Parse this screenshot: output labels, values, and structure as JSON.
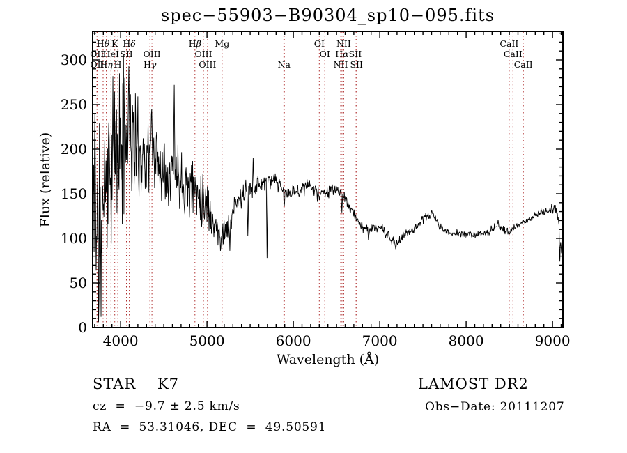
{
  "title": "spec−55903−B90304_sp10−095.fits",
  "footer": {
    "class_label": "STAR    K7",
    "cz": "cz  =  −9.7 ± 2.5 km/s",
    "ra_dec": "RA  =  53.31046, DEC  =  49.50591",
    "survey": "LAMOST DR2",
    "obs_date": "Obs−Date: 20111207"
  },
  "colors": {
    "background": "#ffffff",
    "trace": "#000000",
    "axis": "#000000",
    "text": "#000000",
    "line_marker": "#b03030"
  },
  "chart_data": {
    "type": "line",
    "title": "spec−55903−B90304_sp10−095.fits",
    "xlabel": "Wavelength (Å)",
    "ylabel": "Flux (relative)",
    "xlim": [
      3677,
      9120
    ],
    "ylim": [
      0,
      332
    ],
    "grid": false,
    "legend": "none",
    "x_major_ticks": [
      4000,
      5000,
      6000,
      7000,
      8000,
      9000
    ],
    "x_minor_step": 100,
    "y_major_ticks": [
      0,
      50,
      100,
      150,
      200,
      250,
      300
    ],
    "y_minor_step": 10,
    "series_name": "observed spectrum",
    "continuum": [
      [
        3680,
        135
      ],
      [
        3720,
        130
      ],
      [
        3760,
        145
      ],
      [
        3800,
        158
      ],
      [
        3850,
        172
      ],
      [
        3900,
        185
      ],
      [
        3950,
        198
      ],
      [
        4000,
        205
      ],
      [
        4050,
        212
      ],
      [
        4100,
        215
      ],
      [
        4150,
        205
      ],
      [
        4200,
        196
      ],
      [
        4250,
        192
      ],
      [
        4300,
        192
      ],
      [
        4350,
        195
      ],
      [
        4400,
        193
      ],
      [
        4450,
        185
      ],
      [
        4500,
        180
      ],
      [
        4550,
        178
      ],
      [
        4600,
        178
      ],
      [
        4650,
        175
      ],
      [
        4700,
        168
      ],
      [
        4750,
        162
      ],
      [
        4800,
        158
      ],
      [
        4850,
        155
      ],
      [
        4900,
        152
      ],
      [
        4950,
        148
      ],
      [
        5000,
        140
      ],
      [
        5050,
        125
      ],
      [
        5100,
        112
      ],
      [
        5150,
        105
      ],
      [
        5200,
        108
      ],
      [
        5250,
        112
      ],
      [
        5300,
        130
      ],
      [
        5350,
        140
      ],
      [
        5400,
        147
      ],
      [
        5450,
        152
      ],
      [
        5500,
        155
      ],
      [
        5550,
        158
      ],
      [
        5600,
        161
      ],
      [
        5650,
        163
      ],
      [
        5700,
        164
      ],
      [
        5750,
        165
      ],
      [
        5800,
        163
      ],
      [
        5850,
        157
      ],
      [
        5900,
        151
      ],
      [
        5950,
        150
      ],
      [
        6000,
        152
      ],
      [
        6050,
        154
      ],
      [
        6100,
        156
      ],
      [
        6150,
        158
      ],
      [
        6200,
        158
      ],
      [
        6250,
        156
      ],
      [
        6300,
        153
      ],
      [
        6350,
        151
      ],
      [
        6400,
        152
      ],
      [
        6450,
        154
      ],
      [
        6500,
        155
      ],
      [
        6550,
        151
      ],
      [
        6600,
        144
      ],
      [
        6650,
        136
      ],
      [
        6700,
        128
      ],
      [
        6750,
        119
      ],
      [
        6800,
        113
      ],
      [
        6850,
        110
      ],
      [
        6900,
        110
      ],
      [
        6950,
        112
      ],
      [
        7000,
        112
      ],
      [
        7050,
        108
      ],
      [
        7100,
        102
      ],
      [
        7150,
        96
      ],
      [
        7200,
        95
      ],
      [
        7250,
        100
      ],
      [
        7300,
        105
      ],
      [
        7350,
        108
      ],
      [
        7400,
        111
      ],
      [
        7450,
        116
      ],
      [
        7500,
        121
      ],
      [
        7550,
        125
      ],
      [
        7600,
        127
      ],
      [
        7650,
        121
      ],
      [
        7700,
        113
      ],
      [
        7750,
        108
      ],
      [
        7800,
        106
      ],
      [
        7850,
        106
      ],
      [
        7900,
        106
      ],
      [
        7950,
        105
      ],
      [
        8000,
        105
      ],
      [
        8050,
        104
      ],
      [
        8100,
        103
      ],
      [
        8150,
        104
      ],
      [
        8200,
        105
      ],
      [
        8250,
        107
      ],
      [
        8300,
        111
      ],
      [
        8350,
        114
      ],
      [
        8400,
        112
      ],
      [
        8450,
        108
      ],
      [
        8500,
        108
      ],
      [
        8550,
        111
      ],
      [
        8600,
        114
      ],
      [
        8650,
        117
      ],
      [
        8700,
        120
      ],
      [
        8750,
        123
      ],
      [
        8800,
        126
      ],
      [
        8850,
        128
      ],
      [
        8900,
        130
      ],
      [
        8950,
        132
      ],
      [
        9000,
        133
      ],
      [
        9040,
        134
      ],
      [
        9070,
        120
      ],
      [
        9120,
        76
      ]
    ],
    "noise_profile": [
      [
        3677,
        100
      ],
      [
        3760,
        95
      ],
      [
        3850,
        90
      ],
      [
        3950,
        88
      ],
      [
        4050,
        85
      ],
      [
        4150,
        62
      ],
      [
        4250,
        48
      ],
      [
        4350,
        42
      ],
      [
        4450,
        38
      ],
      [
        4600,
        35
      ],
      [
        4800,
        33
      ],
      [
        5000,
        30
      ],
      [
        5100,
        20
      ],
      [
        5200,
        15
      ],
      [
        5350,
        13
      ],
      [
        5500,
        11
      ],
      [
        5700,
        10
      ],
      [
        5900,
        8
      ],
      [
        6100,
        8
      ],
      [
        6300,
        7
      ],
      [
        6500,
        6
      ],
      [
        6700,
        6
      ],
      [
        6900,
        5
      ],
      [
        7100,
        6
      ],
      [
        7300,
        5
      ],
      [
        7500,
        5
      ],
      [
        7700,
        4
      ],
      [
        7900,
        4
      ],
      [
        8100,
        4
      ],
      [
        8300,
        4
      ],
      [
        8500,
        4
      ],
      [
        8700,
        4
      ],
      [
        8900,
        5
      ],
      [
        9000,
        6
      ],
      [
        9120,
        9
      ]
    ],
    "spikes": [
      [
        3705,
        240
      ],
      [
        3745,
        6
      ],
      [
        3775,
        12
      ],
      [
        4047,
        280
      ],
      [
        4095,
        293
      ],
      [
        4360,
        245
      ],
      [
        4620,
        272
      ],
      [
        5155,
        86
      ],
      [
        5265,
        86
      ],
      [
        5475,
        103
      ],
      [
        5535,
        190
      ],
      [
        5695,
        78
      ],
      [
        5893,
        136
      ],
      [
        6280,
        141
      ],
      [
        6302,
        143
      ],
      [
        6563,
        129
      ],
      [
        6870,
        98
      ],
      [
        7185,
        87
      ],
      [
        7605,
        131
      ],
      [
        8370,
        121
      ],
      [
        9085,
        74
      ]
    ],
    "n_samples": 1150,
    "seed": 11,
    "marker_wavelengths": [
      3727,
      3729,
      3798,
      3835,
      3889,
      3933,
      3968,
      4068,
      4101,
      4340,
      4363,
      4861,
      4959,
      5007,
      5175,
      5890,
      5896,
      6300,
      6364,
      6548,
      6563,
      6583,
      6716,
      6731,
      8498,
      8542,
      8662
    ],
    "spectral_lines": [
      {
        "label": "Hθ",
        "wavelength": 3798,
        "row": 1
      },
      {
        "label": "K",
        "wavelength": 3933,
        "row": 1
      },
      {
        "label": "Hδ",
        "wavelength": 4101,
        "row": 1
      },
      {
        "label": "Hβ",
        "wavelength": 4861,
        "row": 1
      },
      {
        "label": "Mg",
        "wavelength": 5175,
        "row": 1
      },
      {
        "label": "OI",
        "wavelength": 6300,
        "row": 1
      },
      {
        "label": "NII",
        "wavelength": 6583,
        "row": 1
      },
      {
        "label": "CaII",
        "wavelength": 8498,
        "row": 1
      },
      {
        "label": "OII",
        "wavelength": 3727,
        "row": 2
      },
      {
        "label": "HeI",
        "wavelength": 3889,
        "row": 2
      },
      {
        "label": "SII",
        "wavelength": 4068,
        "row": 2
      },
      {
        "label": "OIII",
        "wavelength": 4363,
        "row": 2
      },
      {
        "label": "OIII",
        "wavelength": 4959,
        "row": 2
      },
      {
        "label": "OI",
        "wavelength": 6364,
        "row": 2
      },
      {
        "label": "Hα",
        "wavelength": 6563,
        "row": 2
      },
      {
        "label": "SII",
        "wavelength": 6716,
        "row": 2
      },
      {
        "label": "CaII",
        "wavelength": 8542,
        "row": 2
      },
      {
        "label": "OII",
        "wavelength": 3729,
        "row": 3
      },
      {
        "label": "Hη",
        "wavelength": 3835,
        "row": 3
      },
      {
        "label": "H",
        "wavelength": 3968,
        "row": 3
      },
      {
        "label": "Hγ",
        "wavelength": 4340,
        "row": 3
      },
      {
        "label": "OIII",
        "wavelength": 5007,
        "row": 3
      },
      {
        "label": "Na",
        "wavelength": 5893,
        "row": 3
      },
      {
        "label": "NII",
        "wavelength": 6548,
        "row": 3
      },
      {
        "label": "SII",
        "wavelength": 6731,
        "row": 3
      },
      {
        "label": "CaII",
        "wavelength": 8662,
        "row": 3
      }
    ]
  }
}
